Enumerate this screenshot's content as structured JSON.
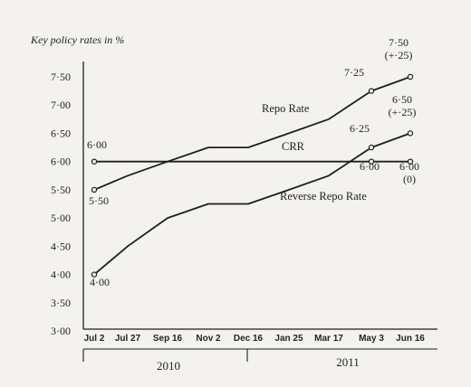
{
  "chart_data": {
    "type": "line",
    "title": "Key policy rates in %",
    "categories": [
      "Jul 2",
      "Jul 27",
      "Sep 16",
      "Nov 2",
      "Dec 16",
      "Jan 25",
      "Mar 17",
      "May 3",
      "Jun 16"
    ],
    "years": [
      "2010",
      "2011"
    ],
    "yticks": [
      "3·00",
      "3·50",
      "4·00",
      "4·50",
      "5·00",
      "5·50",
      "6·00",
      "6·50",
      "7·00",
      "7·50"
    ],
    "ylim": [
      3.0,
      7.75
    ],
    "series": [
      {
        "name": "Repo Rate",
        "values": [
          5.5,
          5.75,
          6.0,
          6.25,
          6.25,
          6.5,
          6.75,
          7.25,
          7.5
        ],
        "point_labels": {
          "start": "5·50",
          "may": "7·25",
          "end": "7·50",
          "end_change": "(+·25)"
        }
      },
      {
        "name": "CRR",
        "values": [
          6.0,
          6.0,
          6.0,
          6.0,
          6.0,
          6.0,
          6.0,
          6.0,
          6.0
        ],
        "point_labels": {
          "start": "6·00",
          "may": "6·00",
          "end": "6·00",
          "end_change": "(0)"
        }
      },
      {
        "name": "Reverse Repo Rate",
        "values": [
          4.0,
          4.5,
          5.0,
          5.25,
          5.25,
          5.5,
          5.75,
          6.25,
          6.5
        ],
        "point_labels": {
          "start": "4·00",
          "may": "6·25",
          "end": "6·50",
          "end_change": "(+·25)"
        }
      }
    ],
    "line_color": "#1e1e1e"
  }
}
